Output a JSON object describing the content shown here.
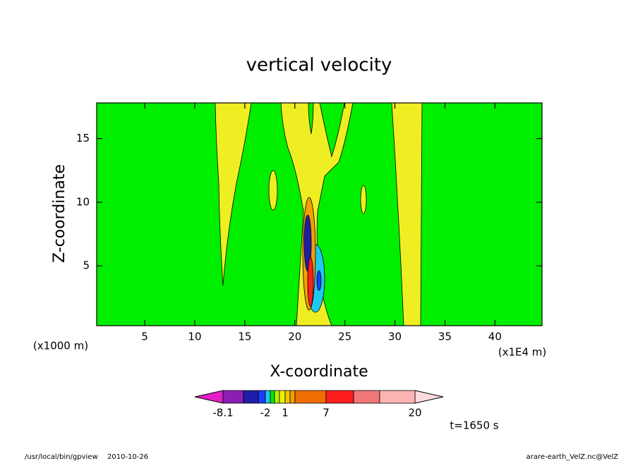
{
  "chart_data": {
    "type": "contour",
    "title": "vertical velocity",
    "xlabel": "X-coordinate",
    "ylabel": "Z-coordinate",
    "x_unit_label": "(x1E4 m)",
    "y_unit_label": "(x1000 m)",
    "xlim": [
      0.2,
      44.7
    ],
    "ylim": [
      0.3,
      17.8
    ],
    "xticks": [
      5,
      10,
      15,
      20,
      25,
      30,
      35,
      40
    ],
    "yticks": [
      5,
      10,
      15
    ],
    "colorbar": {
      "under_color": "#e61ec8",
      "over_color": "#ffdcdc",
      "colors": [
        "#8c1eb4",
        "#1e1eaa",
        "#1e3cff",
        "#1ec8f0",
        "#00e600",
        "#b4f000",
        "#f0f000",
        "#f0c800",
        "#f0a000",
        "#f06e00",
        "#ff1e1e",
        "#f07878",
        "#ffb4b4"
      ],
      "labels": [
        -8.1,
        -2,
        1,
        7,
        20
      ]
    },
    "annotation": "t=1650 s",
    "footer_left": [
      "/usr/local/bin/gpview",
      "2010-10-26"
    ],
    "footer_right": "arare-earth_VelZ.nc@VelZ"
  }
}
